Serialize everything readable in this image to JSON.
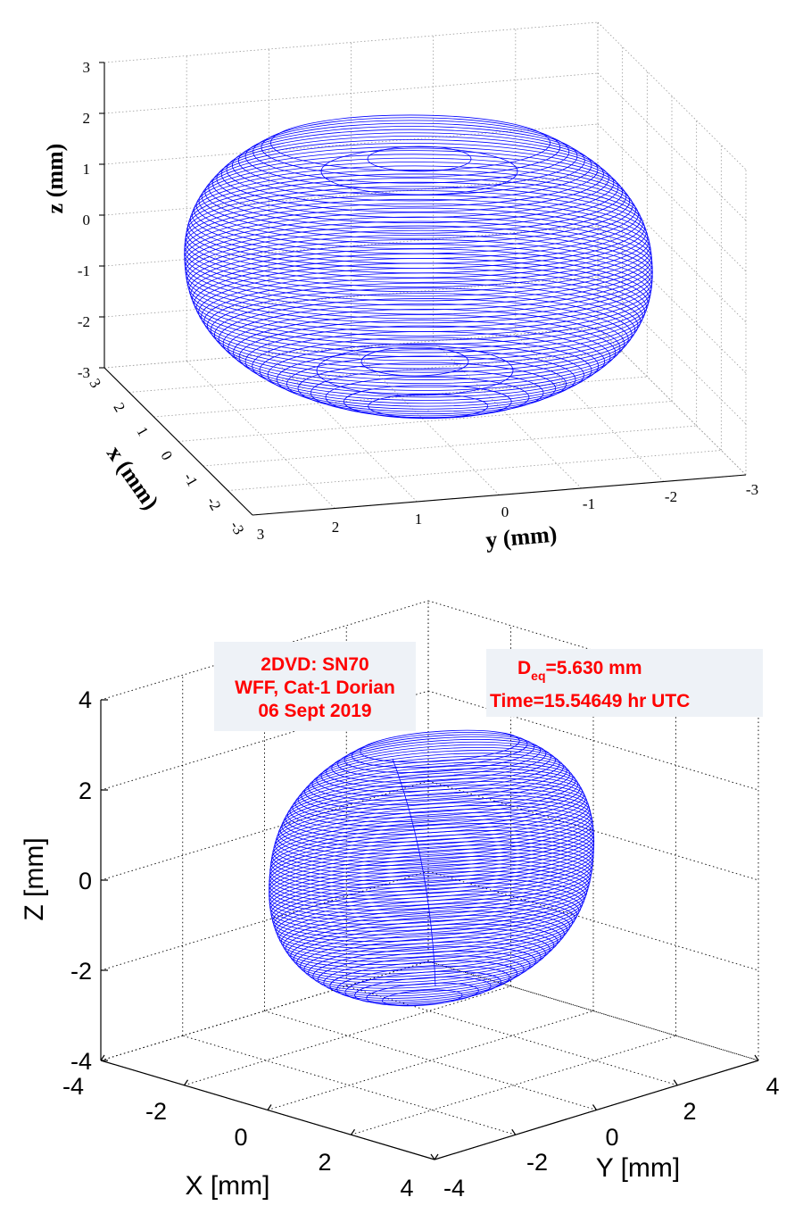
{
  "chart_data": [
    {
      "type": "3d-surface",
      "xlabel": "x (mm)",
      "ylabel": "y (mm)",
      "zlabel": "z (mm)",
      "xlim": [
        -3,
        3
      ],
      "ylim": [
        -3,
        3
      ],
      "zlim": [
        -3,
        3
      ],
      "xticks": [
        "3",
        "2",
        "1",
        "0",
        "-1",
        "-2",
        "-3"
      ],
      "yticks": [
        "3",
        "2",
        "1",
        "0",
        "-1",
        "-2",
        "-3"
      ],
      "zticks": [
        "3",
        "2",
        "1",
        "0",
        "-1",
        "-2",
        "-3"
      ],
      "grid": "dotted",
      "surface_color": "#0000ff",
      "surface": "drop shape (oblate spheroid)",
      "drop_extent_mm": {
        "horizontal": [
          -3,
          3
        ],
        "vertical": [
          -2.4,
          1.4
        ]
      }
    },
    {
      "type": "3d-surface",
      "xlabel": "X [mm]",
      "ylabel": "Y [mm]",
      "zlabel": "Z [mm]",
      "xlim": [
        -4,
        4
      ],
      "ylim": [
        -4,
        4
      ],
      "zlim": [
        -4,
        4
      ],
      "xticks": [
        "-4",
        "-2",
        "0",
        "2",
        "4"
      ],
      "yticks": [
        "-4",
        "-2",
        "0",
        "2",
        "4"
      ],
      "zticks": [
        "4",
        "2",
        "0",
        "-2",
        "-4"
      ],
      "grid": "dotted",
      "surface_color": "#0000ff",
      "surface": "drop shape (oblate spheroid)",
      "drop_extent_mm": {
        "vertical": [
          -2.8,
          2.9
        ]
      },
      "annotations": {
        "box1": [
          "2DVD: SN70",
          "WFF, Cat-1 Dorian",
          "06 Sept 2019"
        ],
        "deq_prefix": "D",
        "deq_sub": "eq",
        "deq_value": "=5.630 mm",
        "time": "Time=15.54649 hr UTC"
      }
    }
  ]
}
